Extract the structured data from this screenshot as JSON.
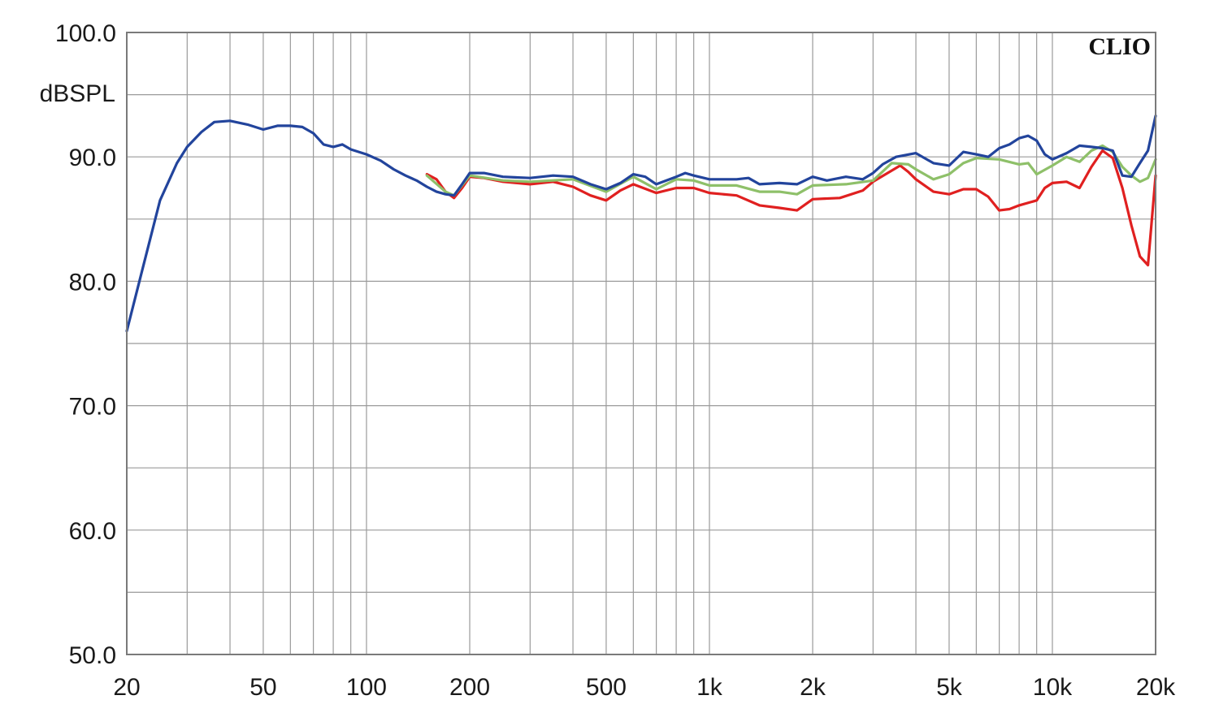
{
  "brand_text": "CLIO",
  "chart_data": {
    "type": "line",
    "title": "",
    "xlabel": "",
    "ylabel": "dBSPL",
    "xscale": "log",
    "xlim": [
      20,
      20000
    ],
    "ylim": [
      50,
      100
    ],
    "x_ticks": [
      {
        "value": 20,
        "label": "20"
      },
      {
        "value": 50,
        "label": "50"
      },
      {
        "value": 100,
        "label": "100"
      },
      {
        "value": 200,
        "label": "200"
      },
      {
        "value": 500,
        "label": "500"
      },
      {
        "value": 1000,
        "label": "1k"
      },
      {
        "value": 2000,
        "label": "2k"
      },
      {
        "value": 5000,
        "label": "5k"
      },
      {
        "value": 10000,
        "label": "10k"
      },
      {
        "value": 20000,
        "label": "20k"
      }
    ],
    "y_ticks": [
      {
        "value": 100,
        "label": "100.0"
      },
      {
        "value": 90,
        "label": "90.0"
      },
      {
        "value": 80,
        "label": "80.0"
      },
      {
        "value": 70,
        "label": "70.0"
      },
      {
        "value": 60,
        "label": "60.0"
      },
      {
        "value": 50,
        "label": "50.0"
      }
    ],
    "grid": true,
    "series": [
      {
        "color": "#e02020",
        "points": [
          [
            150,
            88.6
          ],
          [
            160,
            88.2
          ],
          [
            170,
            87.2
          ],
          [
            180,
            86.7
          ],
          [
            190,
            87.5
          ],
          [
            200,
            88.4
          ],
          [
            220,
            88.3
          ],
          [
            250,
            88.0
          ],
          [
            300,
            87.8
          ],
          [
            350,
            88.0
          ],
          [
            400,
            87.6
          ],
          [
            450,
            86.9
          ],
          [
            500,
            86.5
          ],
          [
            550,
            87.3
          ],
          [
            600,
            87.8
          ],
          [
            700,
            87.1
          ],
          [
            800,
            87.5
          ],
          [
            900,
            87.5
          ],
          [
            1000,
            87.1
          ],
          [
            1200,
            86.9
          ],
          [
            1400,
            86.1
          ],
          [
            1600,
            85.9
          ],
          [
            1800,
            85.7
          ],
          [
            2000,
            86.6
          ],
          [
            2400,
            86.7
          ],
          [
            2800,
            87.3
          ],
          [
            3000,
            88.0
          ],
          [
            3400,
            88.9
          ],
          [
            3600,
            89.3
          ],
          [
            3800,
            88.8
          ],
          [
            4000,
            88.2
          ],
          [
            4500,
            87.2
          ],
          [
            5000,
            87.0
          ],
          [
            5500,
            87.4
          ],
          [
            6000,
            87.4
          ],
          [
            6500,
            86.8
          ],
          [
            7000,
            85.7
          ],
          [
            7500,
            85.8
          ],
          [
            8000,
            86.1
          ],
          [
            9000,
            86.5
          ],
          [
            9500,
            87.5
          ],
          [
            10000,
            87.9
          ],
          [
            11000,
            88.0
          ],
          [
            12000,
            87.5
          ],
          [
            13000,
            89.2
          ],
          [
            14000,
            90.5
          ],
          [
            15000,
            89.9
          ],
          [
            16000,
            87.5
          ],
          [
            17000,
            84.5
          ],
          [
            18000,
            82.0
          ],
          [
            19000,
            81.3
          ],
          [
            20000,
            88.5
          ]
        ]
      },
      {
        "color": "#8ec069",
        "points": [
          [
            150,
            88.5
          ],
          [
            170,
            87.2
          ],
          [
            180,
            86.9
          ],
          [
            200,
            88.5
          ],
          [
            250,
            88.1
          ],
          [
            300,
            88.0
          ],
          [
            400,
            88.2
          ],
          [
            500,
            87.2
          ],
          [
            600,
            88.4
          ],
          [
            700,
            87.4
          ],
          [
            800,
            88.2
          ],
          [
            900,
            88.1
          ],
          [
            1000,
            87.7
          ],
          [
            1200,
            87.7
          ],
          [
            1400,
            87.2
          ],
          [
            1600,
            87.2
          ],
          [
            1800,
            87.0
          ],
          [
            2000,
            87.7
          ],
          [
            2500,
            87.8
          ],
          [
            3000,
            88.1
          ],
          [
            3400,
            89.5
          ],
          [
            3800,
            89.4
          ],
          [
            4000,
            89.0
          ],
          [
            4500,
            88.2
          ],
          [
            5000,
            88.6
          ],
          [
            5500,
            89.5
          ],
          [
            6000,
            89.9
          ],
          [
            7000,
            89.8
          ],
          [
            8000,
            89.4
          ],
          [
            8500,
            89.5
          ],
          [
            9000,
            88.6
          ],
          [
            10000,
            89.3
          ],
          [
            11000,
            90.0
          ],
          [
            12000,
            89.6
          ],
          [
            13000,
            90.5
          ],
          [
            14000,
            90.9
          ],
          [
            15000,
            90.4
          ],
          [
            16000,
            89.2
          ],
          [
            17000,
            88.5
          ],
          [
            18000,
            88.0
          ],
          [
            19000,
            88.3
          ],
          [
            20000,
            89.8
          ]
        ]
      },
      {
        "color": "#22449c",
        "points": [
          [
            20,
            76.0
          ],
          [
            22,
            80.5
          ],
          [
            25,
            86.5
          ],
          [
            28,
            89.5
          ],
          [
            30,
            90.8
          ],
          [
            33,
            92.0
          ],
          [
            36,
            92.8
          ],
          [
            40,
            92.9
          ],
          [
            45,
            92.6
          ],
          [
            50,
            92.2
          ],
          [
            55,
            92.5
          ],
          [
            60,
            92.5
          ],
          [
            65,
            92.4
          ],
          [
            70,
            91.9
          ],
          [
            75,
            91.0
          ],
          [
            80,
            90.8
          ],
          [
            85,
            91.0
          ],
          [
            90,
            90.6
          ],
          [
            100,
            90.2
          ],
          [
            110,
            89.7
          ],
          [
            120,
            89.0
          ],
          [
            130,
            88.5
          ],
          [
            140,
            88.1
          ],
          [
            150,
            87.6
          ],
          [
            160,
            87.2
          ],
          [
            170,
            87.0
          ],
          [
            180,
            86.9
          ],
          [
            190,
            87.8
          ],
          [
            200,
            88.7
          ],
          [
            220,
            88.7
          ],
          [
            250,
            88.4
          ],
          [
            300,
            88.3
          ],
          [
            350,
            88.5
          ],
          [
            400,
            88.4
          ],
          [
            450,
            87.8
          ],
          [
            500,
            87.4
          ],
          [
            550,
            87.9
          ],
          [
            600,
            88.6
          ],
          [
            650,
            88.4
          ],
          [
            700,
            87.8
          ],
          [
            800,
            88.4
          ],
          [
            850,
            88.7
          ],
          [
            900,
            88.5
          ],
          [
            1000,
            88.2
          ],
          [
            1200,
            88.2
          ],
          [
            1300,
            88.3
          ],
          [
            1400,
            87.8
          ],
          [
            1600,
            87.9
          ],
          [
            1800,
            87.8
          ],
          [
            2000,
            88.4
          ],
          [
            2200,
            88.1
          ],
          [
            2500,
            88.4
          ],
          [
            2800,
            88.2
          ],
          [
            3000,
            88.7
          ],
          [
            3200,
            89.4
          ],
          [
            3500,
            90.0
          ],
          [
            4000,
            90.3
          ],
          [
            4500,
            89.5
          ],
          [
            5000,
            89.3
          ],
          [
            5500,
            90.4
          ],
          [
            6000,
            90.2
          ],
          [
            6500,
            90.0
          ],
          [
            7000,
            90.7
          ],
          [
            7500,
            91.0
          ],
          [
            8000,
            91.5
          ],
          [
            8500,
            91.7
          ],
          [
            9000,
            91.3
          ],
          [
            9500,
            90.2
          ],
          [
            10000,
            89.8
          ],
          [
            11000,
            90.3
          ],
          [
            12000,
            90.9
          ],
          [
            13000,
            90.8
          ],
          [
            14000,
            90.7
          ],
          [
            15000,
            90.5
          ],
          [
            16000,
            88.5
          ],
          [
            17000,
            88.4
          ],
          [
            18000,
            89.5
          ],
          [
            19000,
            90.5
          ],
          [
            20000,
            93.3
          ]
        ]
      }
    ]
  }
}
